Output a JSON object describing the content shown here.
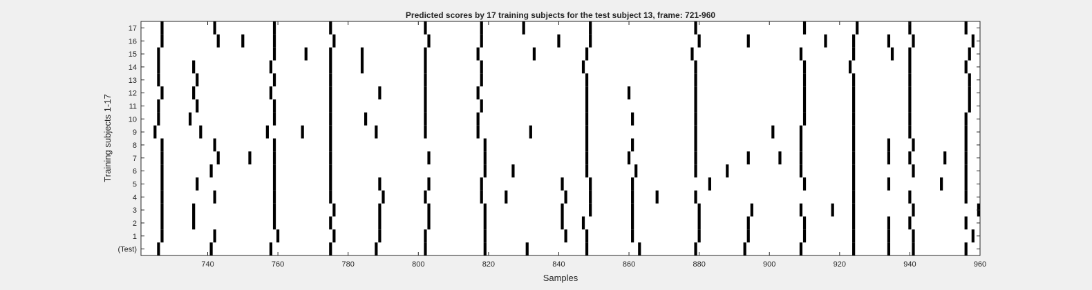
{
  "chart_data": {
    "type": "event-raster",
    "title": "Predicted scores by 17 training subjects for the test subject 13, frame: 721-960",
    "xlabel": "Samples",
    "ylabel": "Training subjects 1-17",
    "xlim": [
      721,
      960
    ],
    "x_ticks": [
      740,
      760,
      780,
      800,
      820,
      840,
      860,
      880,
      900,
      920,
      940,
      960
    ],
    "y_tick_labels": [
      "(Test)",
      "1",
      "2",
      "3",
      "4",
      "5",
      "6",
      "7",
      "8",
      "9",
      "10",
      "11",
      "12",
      "13",
      "14",
      "15",
      "16",
      "17"
    ],
    "colors": {
      "mark": "#000000",
      "plot_bg": "#ffffff",
      "figure_bg": "#f0f0f0",
      "axis": "#262626"
    },
    "series": [
      {
        "label": "(Test)",
        "events": [
          726,
          741,
          758,
          775,
          788,
          802,
          819,
          831,
          848,
          863,
          879,
          893,
          909,
          924,
          934,
          941,
          956
        ]
      },
      {
        "label": "1",
        "events": [
          727,
          742,
          760,
          776,
          789,
          802,
          819,
          842,
          848,
          861,
          880,
          894,
          910,
          924,
          934,
          941,
          958
        ]
      },
      {
        "label": "2",
        "events": [
          727,
          736,
          759,
          775,
          789,
          803,
          819,
          841,
          847,
          861,
          880,
          894,
          910,
          924,
          934,
          940,
          956
        ]
      },
      {
        "label": "3",
        "events": [
          727,
          736,
          759,
          776,
          789,
          803,
          819,
          841,
          849,
          861,
          880,
          895,
          909,
          918,
          924,
          941,
          960
        ]
      },
      {
        "label": "4",
        "events": [
          727,
          742,
          759,
          775,
          790,
          802,
          818,
          825,
          842,
          849,
          861,
          868,
          879,
          924,
          940,
          956
        ]
      },
      {
        "label": "5",
        "events": [
          727,
          737,
          759,
          775,
          789,
          803,
          818,
          841,
          849,
          861,
          883,
          910,
          924,
          934,
          949,
          956
        ]
      },
      {
        "label": "6",
        "events": [
          727,
          741,
          759,
          775,
          819,
          827,
          848,
          862,
          879,
          888,
          909,
          924,
          941,
          956
        ]
      },
      {
        "label": "7",
        "events": [
          727,
          743,
          752,
          759,
          775,
          803,
          819,
          848,
          860,
          879,
          894,
          903,
          909,
          924,
          934,
          940,
          950,
          956
        ]
      },
      {
        "label": "8",
        "events": [
          727,
          742,
          759,
          775,
          819,
          848,
          861,
          879,
          909,
          924,
          934,
          941,
          956
        ]
      },
      {
        "label": "9",
        "events": [
          725,
          738,
          757,
          767,
          775,
          788,
          802,
          817,
          832,
          848,
          879,
          901,
          909,
          924,
          940,
          956
        ]
      },
      {
        "label": "10",
        "events": [
          726,
          735,
          759,
          775,
          785,
          802,
          817,
          848,
          861,
          879,
          910,
          924,
          940,
          956
        ]
      },
      {
        "label": "11",
        "events": [
          726,
          737,
          759,
          775,
          802,
          818,
          848,
          879,
          910,
          924,
          940,
          957
        ]
      },
      {
        "label": "12",
        "events": [
          727,
          736,
          758,
          775,
          789,
          802,
          817,
          848,
          860,
          879,
          910,
          924,
          940,
          957
        ]
      },
      {
        "label": "13",
        "events": [
          726,
          737,
          759,
          775,
          802,
          818,
          848,
          879,
          910,
          924,
          940,
          957
        ]
      },
      {
        "label": "14",
        "events": [
          726,
          736,
          758,
          775,
          784,
          802,
          818,
          847,
          879,
          910,
          923,
          940,
          956
        ]
      },
      {
        "label": "15",
        "events": [
          726,
          759,
          768,
          775,
          784,
          802,
          817,
          833,
          848,
          878,
          909,
          924,
          935,
          940,
          957
        ]
      },
      {
        "label": "16",
        "events": [
          727,
          743,
          750,
          759,
          776,
          803,
          818,
          840,
          849,
          880,
          894,
          916,
          924,
          934,
          941,
          958
        ]
      },
      {
        "label": "17",
        "events": [
          727,
          742,
          759,
          775,
          802,
          818,
          830,
          849,
          879,
          910,
          925,
          940,
          956
        ]
      }
    ]
  }
}
